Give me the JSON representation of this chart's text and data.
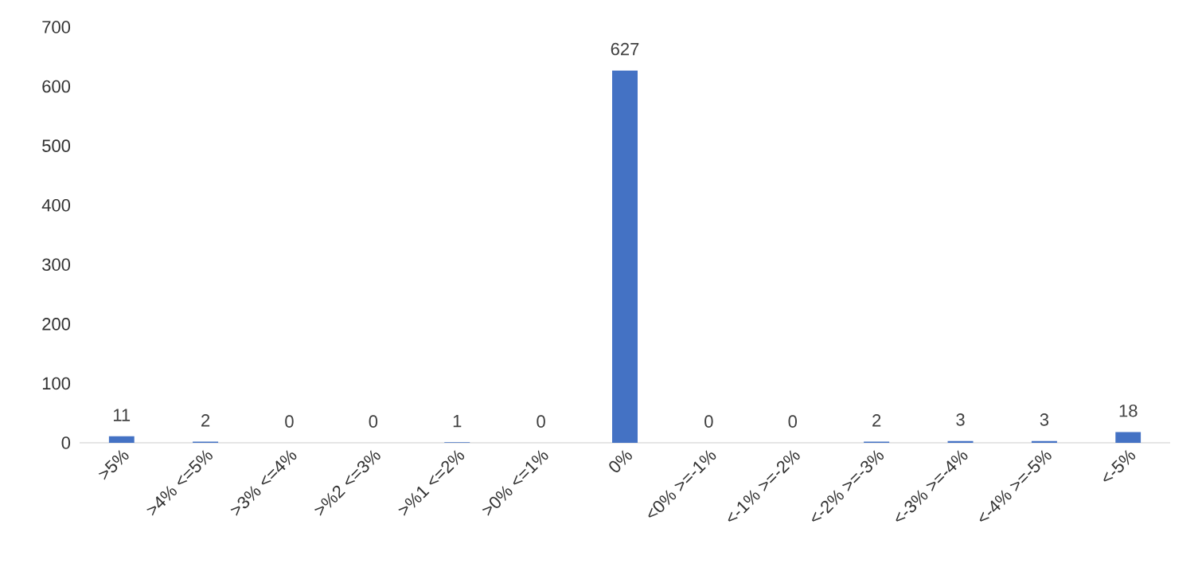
{
  "chart_data": {
    "type": "bar",
    "categories": [
      ">5%",
      ">4% <=5%",
      ">3% <=4%",
      ">%2 <=3%",
      ">%1 <=2%",
      ">0% <=1%",
      "0%",
      "<0% >=-1%",
      "<-1% >=-2%",
      "<-2% >=-3%",
      "<-3% >=-4%",
      "<-4% >=-5%",
      "<-5%"
    ],
    "values": [
      11,
      2,
      0,
      0,
      1,
      0,
      627,
      0,
      0,
      2,
      3,
      3,
      18
    ],
    "color": "#4472c4",
    "ylim": [
      0,
      700
    ],
    "yticks": [
      0,
      100,
      200,
      300,
      400,
      500,
      600,
      700
    ],
    "data_labels": true
  }
}
